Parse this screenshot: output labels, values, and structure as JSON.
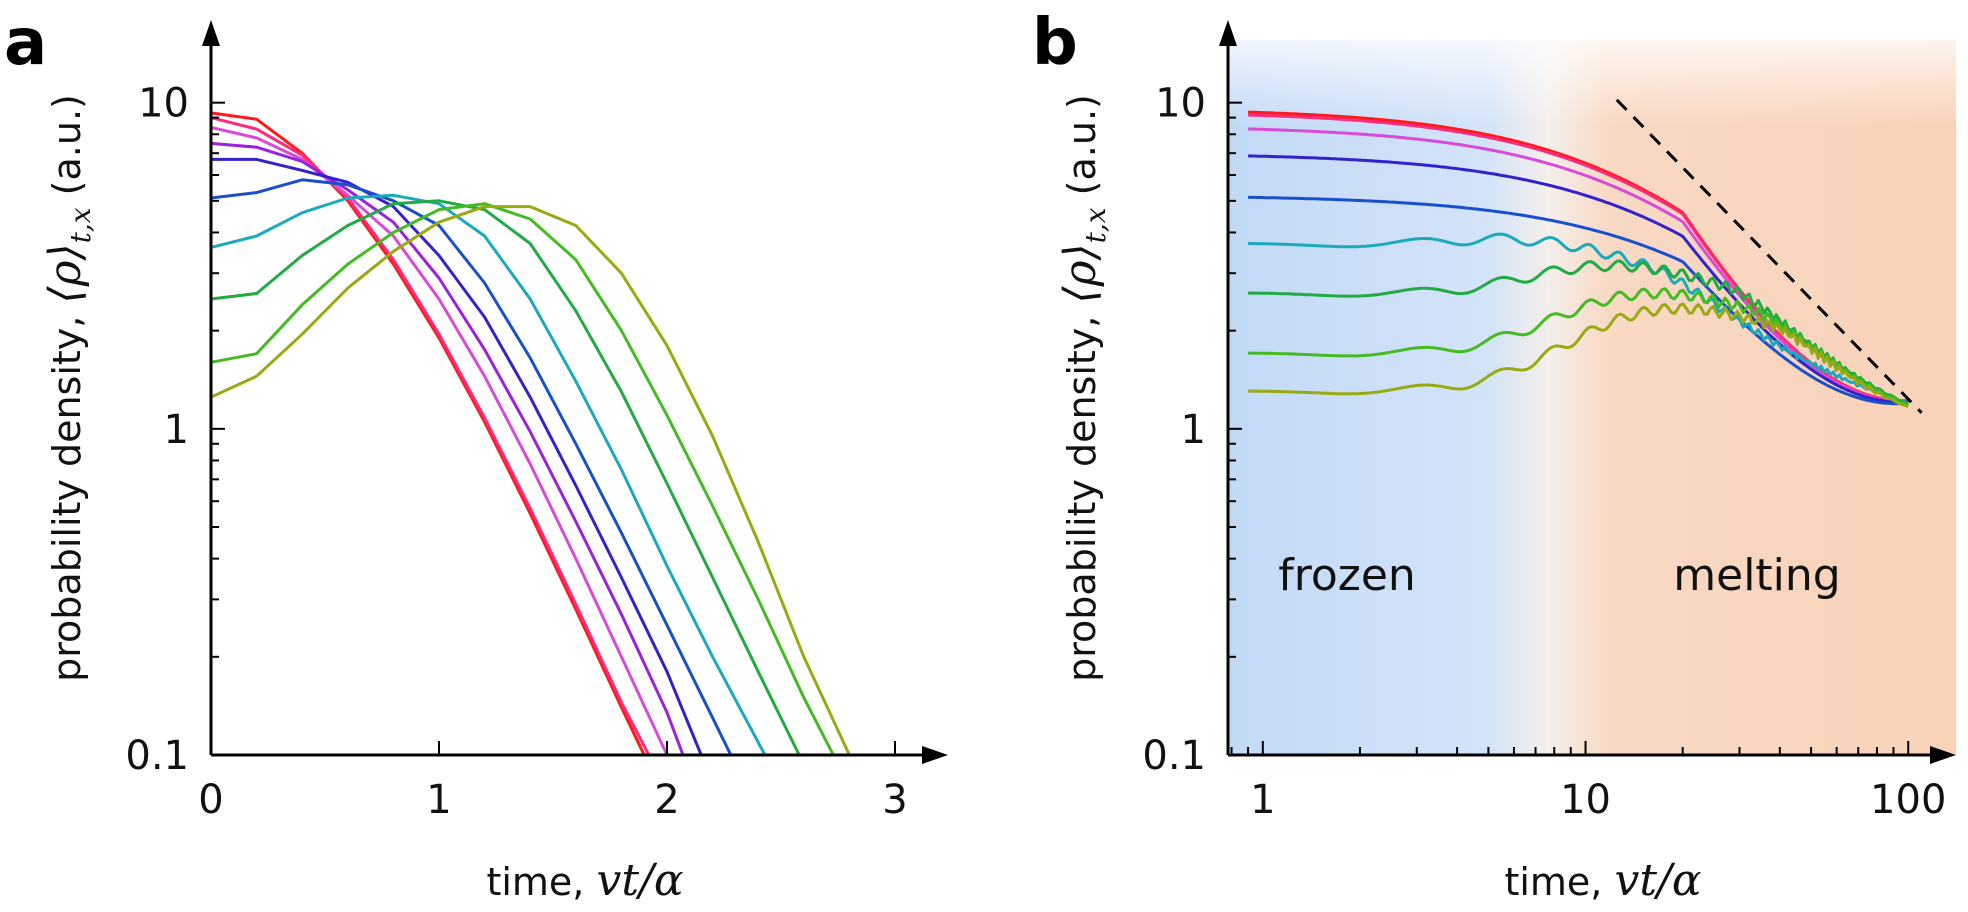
{
  "chart_data": [
    {
      "panel": "a",
      "type": "line",
      "xlabel_text": "time, ",
      "xlabel_math": "vt/α",
      "ylabel_text": "probability density, ",
      "ylabel_math": "⟨ρ⟩",
      "ylabel_sub": "t,x",
      "ylabel_unit": " (a.u.)",
      "xscale": "linear",
      "yscale": "log",
      "xlim": [
        0,
        3
      ],
      "ylim": [
        0.1,
        14
      ],
      "xticks": [
        0,
        1,
        2,
        3
      ],
      "xtick_labels": [
        "0",
        "1",
        "2",
        "3"
      ],
      "yticks": [
        0.1,
        1,
        10
      ],
      "ytick_labels": [
        "0.1",
        "1",
        "10"
      ],
      "grid": false,
      "series": [
        {
          "color": "#ff1a1a",
          "x": [
            0,
            0.2,
            0.4,
            0.6,
            0.8,
            1.0,
            1.2,
            1.4,
            1.6,
            1.8,
            1.9
          ],
          "y": [
            9.3,
            8.9,
            7.0,
            5.0,
            3.2,
            1.9,
            1.05,
            0.55,
            0.28,
            0.14,
            0.1
          ]
        },
        {
          "color": "#ff2a7a",
          "x": [
            0,
            0.2,
            0.4,
            0.6,
            0.8,
            1.0,
            1.2,
            1.4,
            1.6,
            1.8,
            1.92
          ],
          "y": [
            9.0,
            8.3,
            6.9,
            5.1,
            3.3,
            1.95,
            1.08,
            0.57,
            0.29,
            0.145,
            0.1
          ]
        },
        {
          "color": "#d84ad8",
          "x": [
            0,
            0.2,
            0.4,
            0.6,
            0.8,
            1.0,
            1.2,
            1.4,
            1.6,
            1.8,
            2.0
          ],
          "y": [
            8.4,
            7.8,
            6.7,
            5.2,
            3.9,
            2.5,
            1.45,
            0.78,
            0.4,
            0.2,
            0.1
          ]
        },
        {
          "color": "#9a22dd",
          "x": [
            0,
            0.2,
            0.4,
            0.6,
            0.8,
            1.0,
            1.2,
            1.4,
            1.6,
            1.8,
            2.0,
            2.07
          ],
          "y": [
            7.5,
            7.3,
            6.6,
            5.4,
            4.3,
            2.9,
            1.75,
            0.98,
            0.52,
            0.27,
            0.135,
            0.1
          ]
        },
        {
          "color": "#3322cc",
          "x": [
            0,
            0.2,
            0.4,
            0.6,
            0.8,
            1.0,
            1.2,
            1.4,
            1.6,
            1.8,
            2.0,
            2.15
          ],
          "y": [
            6.7,
            6.7,
            6.2,
            5.7,
            4.8,
            3.4,
            2.2,
            1.25,
            0.67,
            0.35,
            0.18,
            0.1
          ]
        },
        {
          "color": "#1a4fcc",
          "x": [
            0,
            0.2,
            0.4,
            0.6,
            0.8,
            1.0,
            1.2,
            1.4,
            1.6,
            1.8,
            2.0,
            2.2,
            2.28
          ],
          "y": [
            5.1,
            5.3,
            5.8,
            5.6,
            5.0,
            4.2,
            2.8,
            1.65,
            0.9,
            0.48,
            0.25,
            0.13,
            0.1
          ]
        },
        {
          "color": "#1aaabb",
          "x": [
            0,
            0.2,
            0.4,
            0.6,
            0.8,
            1.0,
            1.2,
            1.4,
            1.6,
            1.8,
            2.0,
            2.2,
            2.43
          ],
          "y": [
            3.6,
            3.9,
            4.6,
            5.1,
            5.2,
            4.9,
            3.9,
            2.5,
            1.4,
            0.75,
            0.38,
            0.2,
            0.1
          ]
        },
        {
          "color": "#22aa44",
          "x": [
            0,
            0.2,
            0.4,
            0.6,
            0.8,
            1.0,
            1.2,
            1.4,
            1.6,
            1.8,
            2.0,
            2.2,
            2.4,
            2.58
          ],
          "y": [
            2.5,
            2.6,
            3.4,
            4.2,
            4.9,
            5.0,
            4.7,
            3.7,
            2.3,
            1.3,
            0.68,
            0.35,
            0.18,
            0.1
          ]
        },
        {
          "color": "#44bb22",
          "x": [
            0,
            0.2,
            0.4,
            0.6,
            0.8,
            1.0,
            1.2,
            1.4,
            1.6,
            1.8,
            2.0,
            2.2,
            2.4,
            2.6,
            2.73
          ],
          "y": [
            1.6,
            1.7,
            2.4,
            3.2,
            4.0,
            4.7,
            4.9,
            4.4,
            3.3,
            2.0,
            1.1,
            0.58,
            0.3,
            0.15,
            0.1
          ]
        },
        {
          "color": "#99aa11",
          "x": [
            0,
            0.2,
            0.4,
            0.6,
            0.8,
            1.0,
            1.2,
            1.4,
            1.6,
            1.8,
            2.0,
            2.2,
            2.4,
            2.6,
            2.8
          ],
          "y": [
            1.25,
            1.45,
            1.95,
            2.7,
            3.5,
            4.3,
            4.8,
            4.8,
            4.2,
            3.0,
            1.8,
            0.95,
            0.45,
            0.2,
            0.1
          ]
        }
      ]
    },
    {
      "panel": "b",
      "type": "line",
      "xlabel_text": "time, ",
      "xlabel_math": "vt/α",
      "ylabel_text": "probability density, ",
      "ylabel_math": "⟨ρ⟩",
      "ylabel_sub": "t,x",
      "ylabel_unit": " (a.u.)",
      "xscale": "log",
      "yscale": "log",
      "xlim": [
        0.78,
        130
      ],
      "ylim": [
        0.1,
        14
      ],
      "xticks": [
        1,
        10,
        100
      ],
      "xtick_labels": [
        "1",
        "10",
        "100"
      ],
      "yticks": [
        0.1,
        1,
        10
      ],
      "ytick_labels": [
        "0.1",
        "1",
        "10"
      ],
      "grid": false,
      "background_regions": [
        {
          "label": "frozen",
          "color": "#c7dcf7"
        },
        {
          "label": "melting",
          "color": "#f9d6bf"
        }
      ],
      "reference_line": {
        "style": "dashed",
        "color": "#000000",
        "x": [
          12.5,
          110
        ],
        "y": [
          10.2,
          1.12
        ]
      },
      "series": [
        {
          "color": "#ff1a1a",
          "plateau": 9.6,
          "peak_x": 1,
          "endpoint": [
            100,
            1.22
          ]
        },
        {
          "color": "#ff2a7a",
          "plateau": 9.4,
          "peak_x": 1,
          "endpoint": [
            100,
            1.22
          ]
        },
        {
          "color": "#d84ad8",
          "plateau": 8.5,
          "peak_x": 2,
          "endpoint": [
            100,
            1.21
          ]
        },
        {
          "color": "#3322cc",
          "plateau": 7.0,
          "peak_x": 5,
          "endpoint": [
            100,
            1.21
          ]
        },
        {
          "color": "#1a4fcc",
          "plateau": 5.2,
          "peak_x": 7,
          "endpoint": [
            100,
            1.2
          ]
        },
        {
          "color": "#1aaabb",
          "plateau": 3.7,
          "peak_x": 8,
          "peak_y": 4.5,
          "endpoint": [
            100,
            1.2
          ]
        },
        {
          "color": "#22aa44",
          "plateau": 2.6,
          "peak_x": 14,
          "peak_y": 3.9,
          "endpoint": [
            100,
            1.19
          ]
        },
        {
          "color": "#44bb22",
          "plateau": 1.7,
          "peak_x": 17,
          "peak_y": 3.3,
          "endpoint": [
            100,
            1.18
          ]
        },
        {
          "color": "#99aa11",
          "plateau": 1.3,
          "peak_x": 19,
          "peak_y": 3.0,
          "endpoint": [
            100,
            1.17
          ]
        }
      ]
    }
  ]
}
